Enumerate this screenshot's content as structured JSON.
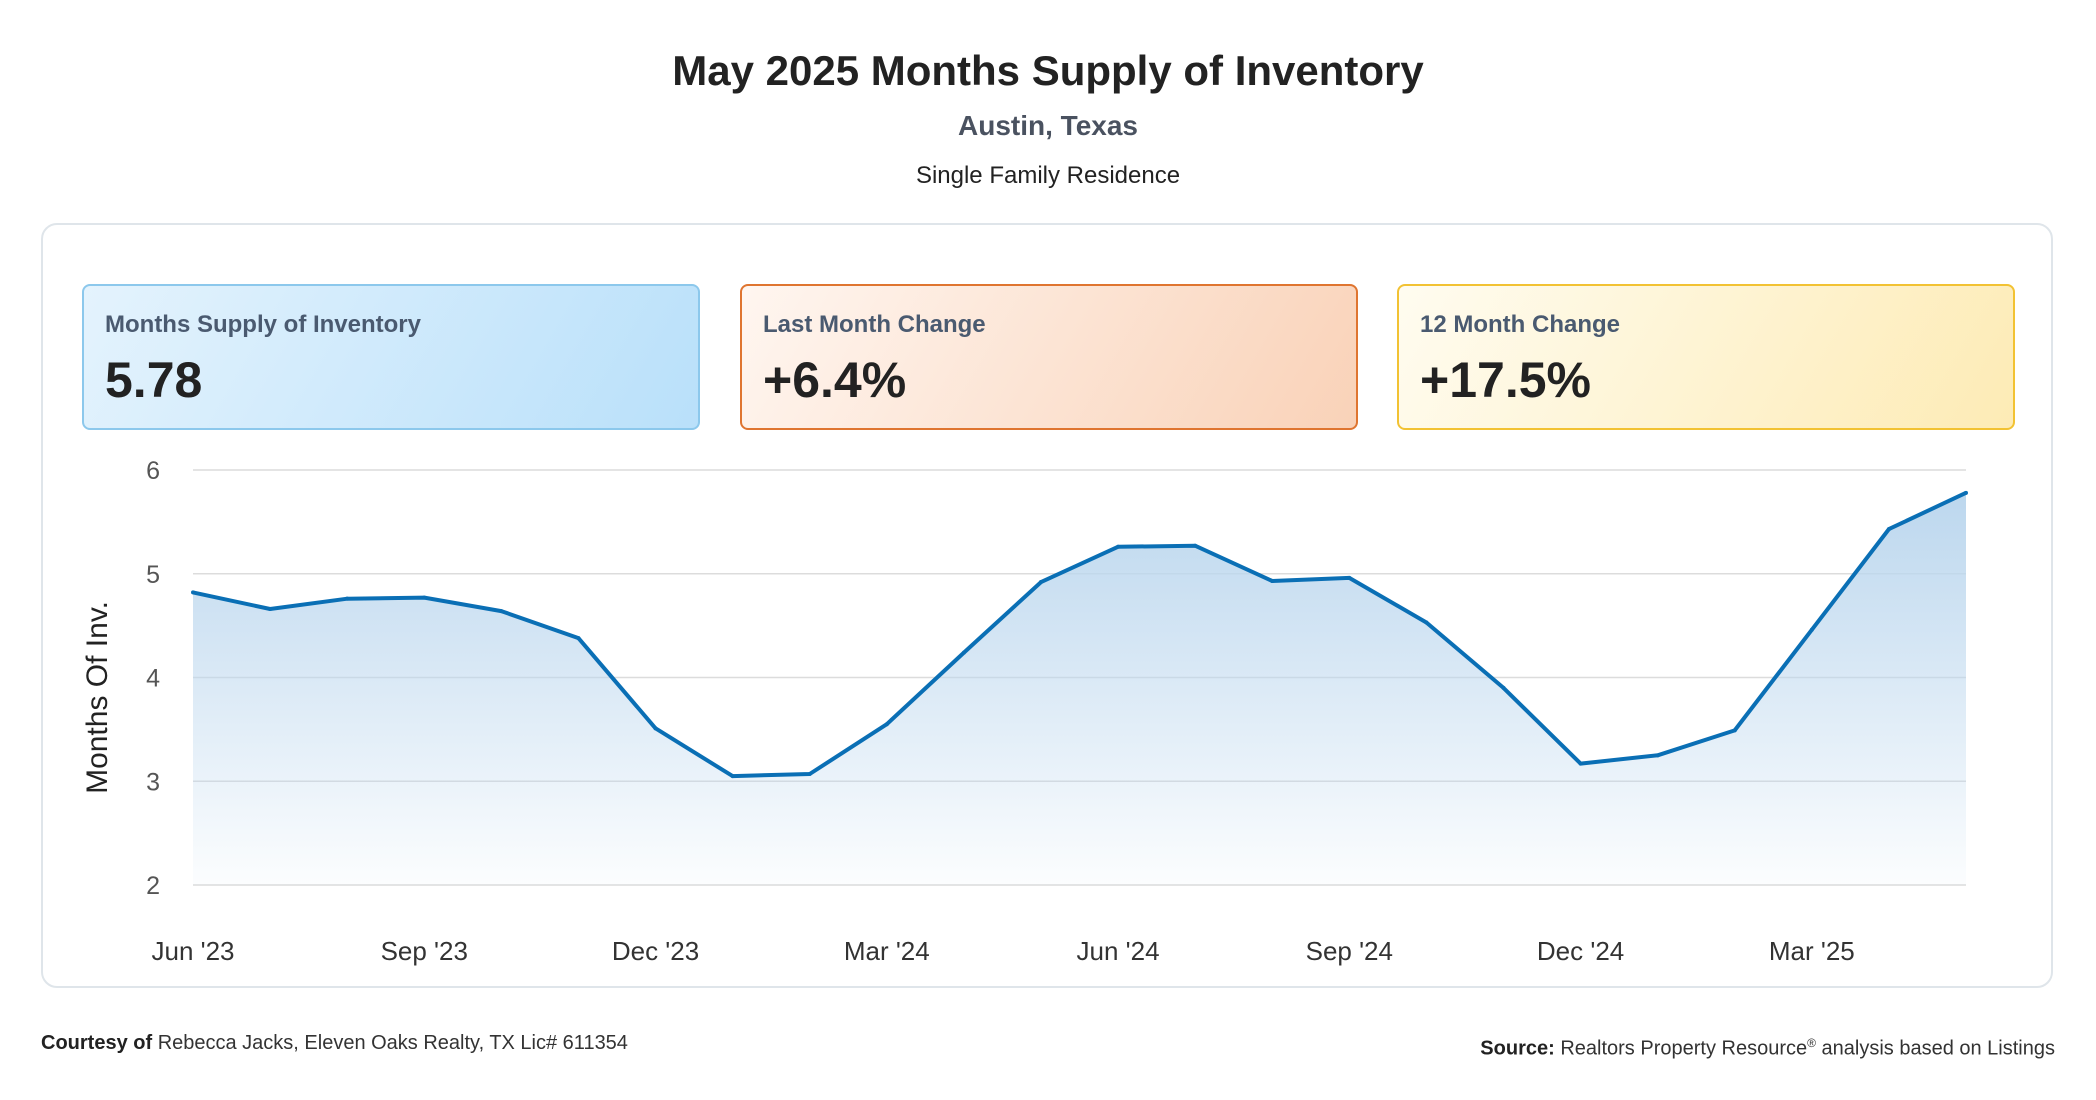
{
  "header": {
    "title": "May 2025 Months Supply of Inventory",
    "subtitle": "Austin, Texas",
    "category": "Single Family Residence"
  },
  "cards": [
    {
      "label": "Months Supply of Inventory",
      "value": "5.78"
    },
    {
      "label": "Last Month Change",
      "value": "+6.4%"
    },
    {
      "label": "12 Month Change",
      "value": "+17.5%"
    }
  ],
  "colors": {
    "line": "#0a6fb5",
    "area_top": "#bcd7ee",
    "grid": "#dcdcdc"
  },
  "chart_data": {
    "type": "area",
    "title": "",
    "xlabel": "",
    "ylabel": "Months Of Inv.",
    "ylim": [
      2,
      6
    ],
    "yticks": [
      2,
      3,
      4,
      5,
      6
    ],
    "grid": true,
    "x": [
      "Jun '23",
      "Jul '23",
      "Aug '23",
      "Sep '23",
      "Oct '23",
      "Nov '23",
      "Dec '23",
      "Jan '24",
      "Feb '24",
      "Mar '24",
      "Apr '24",
      "May '24",
      "Jun '24",
      "Jul '24",
      "Aug '24",
      "Sep '24",
      "Oct '24",
      "Nov '24",
      "Dec '24",
      "Jan '25",
      "Feb '25",
      "Mar '25",
      "Apr '25",
      "May '25"
    ],
    "xtick_labels": [
      "Jun '23",
      "Sep '23",
      "Dec '23",
      "Mar '24",
      "Jun '24",
      "Sep '24",
      "Dec '24",
      "Mar '25"
    ],
    "xtick_indices": [
      0,
      3,
      6,
      9,
      12,
      15,
      18,
      21
    ],
    "series": [
      {
        "values": [
          4.82,
          4.66,
          4.76,
          4.77,
          4.64,
          4.38,
          3.51,
          3.05,
          3.07,
          3.55,
          4.24,
          4.92,
          5.26,
          5.27,
          4.93,
          4.96,
          4.53,
          3.9,
          3.17,
          3.25,
          3.49,
          4.46,
          5.43,
          5.78
        ]
      }
    ]
  },
  "footer": {
    "courtesy_label": "Courtesy of",
    "courtesy_text": "Rebecca Jacks, Eleven Oaks Realty, TX Lic# 611354",
    "source_label": "Source:",
    "source_text": "Realtors Property Resource",
    "source_mark": "®",
    "source_suffix": "analysis based on Listings"
  }
}
